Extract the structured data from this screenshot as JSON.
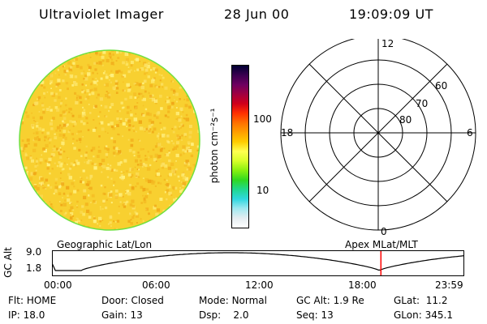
{
  "header": {
    "instrument": "Ultraviolet Imager",
    "date": "28 Jun 00",
    "time": "19:09:09 UT"
  },
  "colorbar": {
    "label": "photon cm⁻²s⁻¹",
    "ticks": [
      {
        "label": "100",
        "value": 100
      },
      {
        "label": "10",
        "value": 10
      }
    ],
    "colors": [
      "#000032",
      "#3a0050",
      "#6e0060",
      "#a00040",
      "#d0001a",
      "#ff3000",
      "#ff7000",
      "#ffa000",
      "#ffcc00",
      "#ffff50",
      "#d8ff2a",
      "#88f010",
      "#30d820",
      "#20d890",
      "#30d8e0",
      "#a0e8f0",
      "#e4ecf0",
      "#ffffff"
    ]
  },
  "image": {
    "base_color": "#f8d030",
    "speckle_colors": [
      "#f4b820",
      "#fce060",
      "#f0a818",
      "#fff080"
    ],
    "rim_color": "#70e040"
  },
  "polar": {
    "mlt_labels": {
      "top": "12",
      "bottom": "0",
      "left": "18",
      "right": "6"
    },
    "lat_labels": [
      "60",
      "70",
      "80"
    ]
  },
  "timeline": {
    "left_title": "Geographic Lat/Lon",
    "right_title": "Apex MLat/MLT",
    "ylabel": "GC Alt",
    "yticks": [
      {
        "label": "9.0",
        "value": 9.0
      },
      {
        "label": "1.8",
        "value": 1.8
      }
    ],
    "xticks": [
      {
        "label": "00:00",
        "hour": 0
      },
      {
        "label": "06:00",
        "hour": 6
      },
      {
        "label": "12:00",
        "hour": 12
      },
      {
        "label": "18:00",
        "hour": 18
      },
      {
        "label": "23:59",
        "hour": 23.983
      }
    ],
    "current_hour": 19.15,
    "marker_color": "#ff0000"
  },
  "info": {
    "row1": [
      {
        "key": "Flt:",
        "value": "HOME"
      },
      {
        "key": "Door:",
        "value": "Closed"
      },
      {
        "key": "Mode:",
        "value": "Normal"
      },
      {
        "key": "GC Alt:",
        "value": "1.9 Re"
      },
      {
        "key": "GLat:",
        "value": "11.2"
      }
    ],
    "row2": [
      {
        "key": "IP:",
        "value": "18.0"
      },
      {
        "key": "Gain:",
        "value": "13"
      },
      {
        "key": "Dsp:",
        "value": "2.0"
      },
      {
        "key": "Seq:",
        "value": "13"
      },
      {
        "key": "GLon:",
        "value": "345.1"
      }
    ]
  }
}
